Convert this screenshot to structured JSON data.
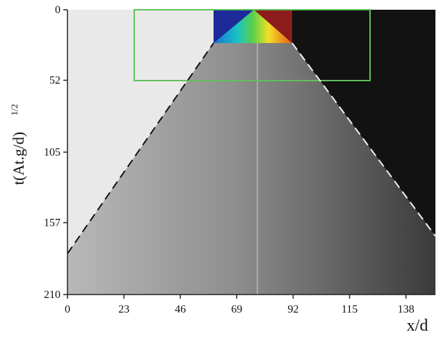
{
  "chart_data": {
    "type": "image",
    "xlabel": "x/d",
    "ylabel": "t(At.g/d)",
    "ylabel_exponent": "1/2",
    "xlim": [
      0,
      150
    ],
    "xticks": [
      0,
      23,
      46,
      69,
      92,
      115,
      138
    ],
    "ylim": [
      0,
      210
    ],
    "yticks": [
      0,
      52,
      105,
      157,
      210
    ],
    "y_inverted": true
  }
}
